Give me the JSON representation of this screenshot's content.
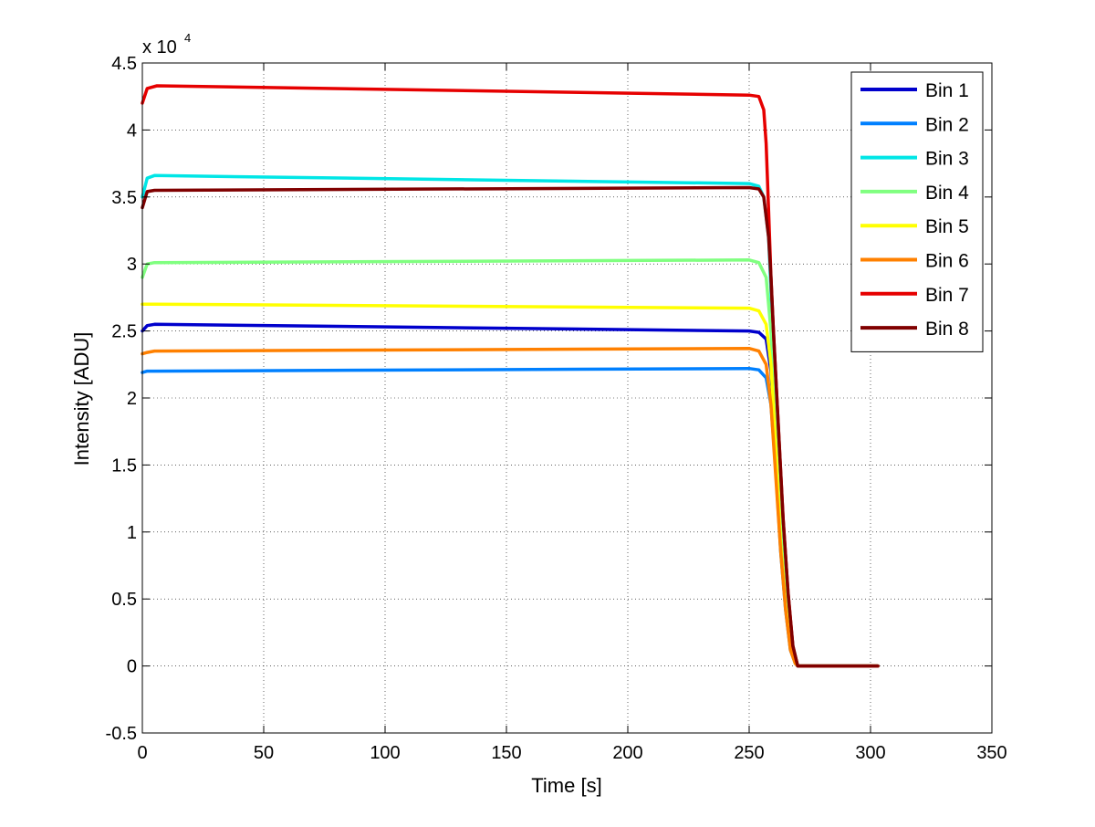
{
  "chart_data": {
    "type": "line",
    "title": "",
    "xlabel": "Time [s]",
    "ylabel": "Intensity [ADU]",
    "xlim": [
      0,
      350
    ],
    "ylim": [
      -0.5,
      4.5
    ],
    "y_exponent_label": "x 10",
    "y_exponent_power": "4",
    "x_ticks": [
      0,
      50,
      100,
      150,
      200,
      250,
      300,
      350
    ],
    "x_tick_labels": [
      "0",
      "50",
      "100",
      "150",
      "200",
      "250",
      "300",
      "350"
    ],
    "y_ticks": [
      -0.5,
      0,
      0.5,
      1,
      1.5,
      2,
      2.5,
      3,
      3.5,
      4,
      4.5
    ],
    "y_tick_labels": [
      "-0.5",
      "0",
      "0.5",
      "1",
      "1.5",
      "2",
      "2.5",
      "3",
      "3.5",
      "4",
      "4.5"
    ],
    "grid": true,
    "legend_position": "top-right",
    "series": [
      {
        "name": "Bin 1",
        "color": "#0000cc",
        "x": [
          0,
          2,
          5,
          250,
          254,
          257,
          259,
          261,
          263,
          265,
          267,
          269,
          270,
          303
        ],
        "y": [
          2.5,
          2.54,
          2.55,
          2.5,
          2.49,
          2.44,
          2.2,
          1.6,
          0.9,
          0.45,
          0.15,
          0.02,
          0,
          0
        ]
      },
      {
        "name": "Bin 2",
        "color": "#0080ff",
        "x": [
          0,
          2,
          5,
          250,
          254,
          257,
          259,
          261,
          263,
          265,
          267,
          269,
          270,
          303
        ],
        "y": [
          2.19,
          2.2,
          2.2,
          2.22,
          2.21,
          2.15,
          1.95,
          1.45,
          0.85,
          0.42,
          0.12,
          0.02,
          0,
          0
        ]
      },
      {
        "name": "Bin 3",
        "color": "#00e6e6",
        "x": [
          0,
          2,
          5,
          250,
          254,
          256,
          258,
          259,
          260,
          262,
          264,
          266,
          268,
          270,
          303
        ],
        "y": [
          3.5,
          3.64,
          3.66,
          3.6,
          3.58,
          3.5,
          3.2,
          2.8,
          2.3,
          1.6,
          1.0,
          0.5,
          0.15,
          0,
          0
        ]
      },
      {
        "name": "Bin 4",
        "color": "#80ff80",
        "x": [
          0,
          2,
          5,
          250,
          254,
          257,
          259,
          261,
          263,
          265,
          267,
          269,
          270,
          303
        ],
        "y": [
          2.9,
          3.0,
          3.01,
          3.03,
          3.01,
          2.9,
          2.5,
          1.8,
          1.0,
          0.48,
          0.14,
          0.02,
          0,
          0
        ]
      },
      {
        "name": "Bin 5",
        "color": "#ffff00",
        "x": [
          0,
          2,
          5,
          250,
          254,
          257,
          259,
          261,
          263,
          265,
          267,
          269,
          270,
          303
        ],
        "y": [
          2.7,
          2.7,
          2.7,
          2.67,
          2.65,
          2.55,
          2.25,
          1.6,
          0.9,
          0.45,
          0.13,
          0.02,
          0,
          0
        ]
      },
      {
        "name": "Bin 6",
        "color": "#ff8000",
        "x": [
          0,
          2,
          5,
          250,
          254,
          257,
          259,
          261,
          263,
          265,
          267,
          269,
          270,
          303
        ],
        "y": [
          2.33,
          2.34,
          2.35,
          2.37,
          2.35,
          2.25,
          1.95,
          1.4,
          0.85,
          0.42,
          0.12,
          0.02,
          0,
          0
        ]
      },
      {
        "name": "Bin 7",
        "color": "#e60000",
        "x": [
          0,
          2,
          6,
          250,
          254,
          256,
          257,
          258,
          259,
          260,
          262,
          264,
          266,
          268,
          270,
          303
        ],
        "y": [
          4.2,
          4.31,
          4.33,
          4.26,
          4.25,
          4.15,
          3.9,
          3.4,
          2.9,
          2.5,
          1.8,
          1.1,
          0.55,
          0.15,
          0,
          0
        ]
      },
      {
        "name": "Bin 8",
        "color": "#800000",
        "x": [
          0,
          2,
          5,
          250,
          254,
          256,
          258,
          259,
          260,
          262,
          264,
          266,
          268,
          270,
          303
        ],
        "y": [
          3.42,
          3.54,
          3.55,
          3.57,
          3.56,
          3.5,
          3.2,
          2.9,
          2.5,
          1.8,
          1.1,
          0.55,
          0.15,
          0,
          0
        ]
      }
    ]
  }
}
